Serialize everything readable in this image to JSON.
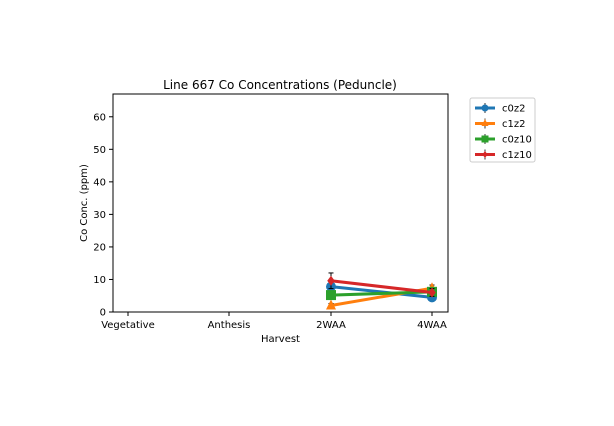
{
  "chart_data": {
    "type": "line",
    "title": "Line 667 Co Concentrations (Peduncle)",
    "xlabel": "Harvest",
    "ylabel": "Co Conc. (ppm)",
    "categories": [
      "Vegetative",
      "Anthesis",
      "2WAA",
      "4WAA"
    ],
    "ylim": [
      0,
      67
    ],
    "yticks": [
      0,
      10,
      20,
      30,
      40,
      50,
      60
    ],
    "grid": false,
    "legend_position": "outside top-right",
    "series": [
      {
        "name": "c0z2",
        "color": "#1f77b4",
        "marker": "circle",
        "values": [
          null,
          null,
          7.8,
          4.5
        ],
        "errors": [
          null,
          null,
          1.2,
          0.8
        ]
      },
      {
        "name": "c1z2",
        "color": "#ff7f0e",
        "marker": "triangle",
        "values": [
          null,
          null,
          2.0,
          7.3
        ],
        "errors": [
          null,
          null,
          0.6,
          1.0
        ]
      },
      {
        "name": "c0z10",
        "color": "#2ca02c",
        "marker": "square",
        "values": [
          null,
          null,
          5.2,
          6.2
        ],
        "errors": [
          null,
          null,
          0.8,
          0.8
        ]
      },
      {
        "name": "c1z10",
        "color": "#d62728",
        "marker": "diamond",
        "values": [
          null,
          null,
          9.6,
          6.0
        ],
        "errors": [
          null,
          null,
          2.4,
          1.2
        ]
      }
    ]
  }
}
